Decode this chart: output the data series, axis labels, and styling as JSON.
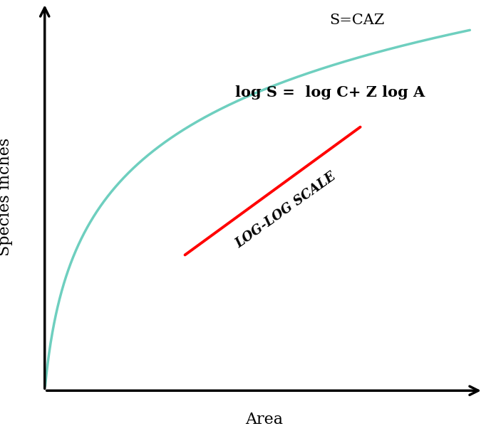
{
  "ylabel": "Species inches",
  "xlabel": "Area",
  "curve_color": "#6ECFBF",
  "line_color": "#FF0000",
  "curve_label": "S=CAZ",
  "line_label": "log S =  log C+ Z log A",
  "line_log_label": "LOG-LOG SCALE",
  "background_color": "#FFFFFF",
  "curve_linewidth": 2.5,
  "line_linewidth": 2.8,
  "label_fontsize": 16,
  "annotation_fontsize": 15,
  "log_label_fontsize": 13
}
